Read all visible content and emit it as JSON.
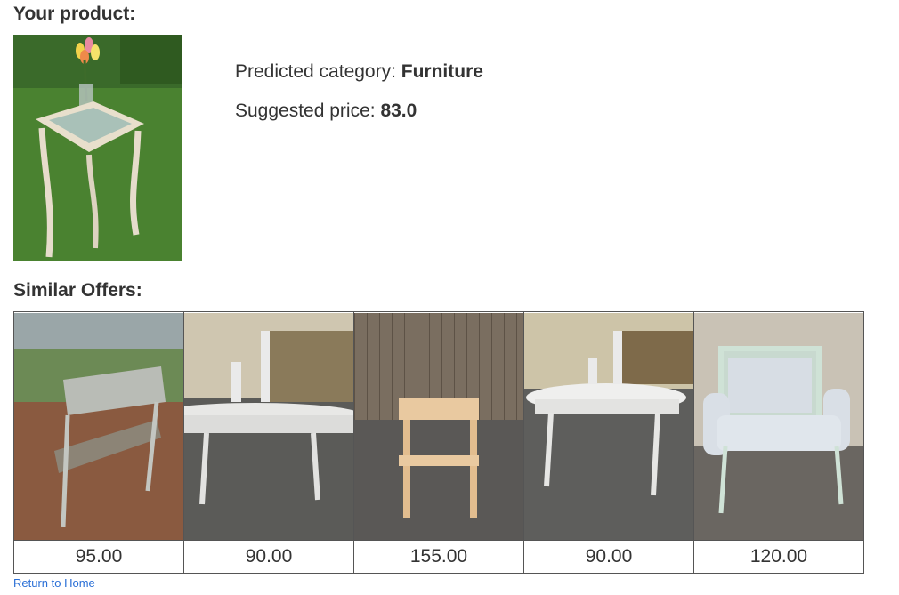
{
  "headings": {
    "your_product": "Your product:",
    "similar_offers": "Similar Offers:"
  },
  "product": {
    "predicted_category_label": "Predicted category: ",
    "predicted_category_value": "Furniture",
    "suggested_price_label": "Suggested price: ",
    "suggested_price_value": "83.0"
  },
  "offers": [
    {
      "price": "95.00"
    },
    {
      "price": "90.00"
    },
    {
      "price": "155.00"
    },
    {
      "price": "90.00"
    },
    {
      "price": "120.00"
    }
  ],
  "links": {
    "return_home": "Return to Home"
  }
}
